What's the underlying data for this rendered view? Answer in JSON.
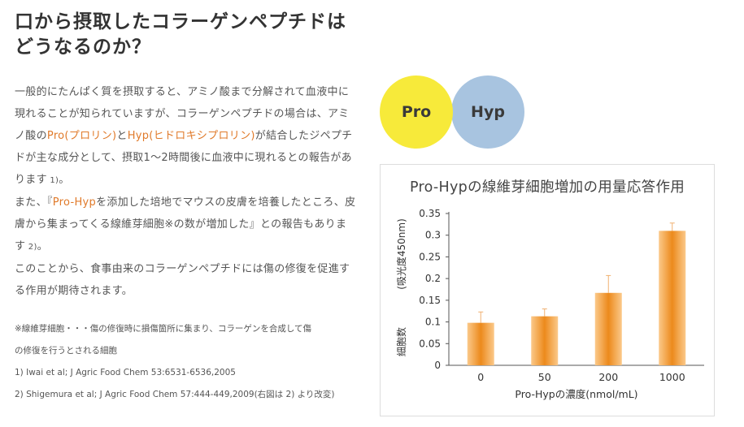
{
  "heading": "口から摂取したコラーゲンペプチドはどうなるのか？",
  "paragraph1": {
    "part1": "一般的にたんぱく質を摂取すると、アミノ酸まで分解されて血液中に現れることが知られていますが、コラーゲンペプチドの場合は、アミノ酸の",
    "pro": "Pro(プロリン)",
    "part2": "と",
    "hyp": "Hyp(ヒドロキシプロリン)",
    "part3": "が結合したジペプチドが主な成分として、摂取1～2時間後に血液中に現れるとの報告があります",
    "ref": " 1)",
    "part4": "。"
  },
  "paragraph2": {
    "part1": "また、『",
    "prohyp": "Pro-Hyp",
    "part2": "を添加した培地でマウスの皮膚を培養したところ、皮膚から集まってくる線維芽細胞※の数が増加した』との報告もあります",
    "ref": " 2)",
    "part3": "。"
  },
  "paragraph3": "このことから、食事由来のコラーゲンペプチドには傷の修復を促進する作用が期待されます。",
  "notes": [
    "※線維芽細胞・・・傷の修復時に損傷箇所に集まり、コラーゲンを合成して傷",
    "の修復を行うとされる細胞",
    "1) Iwai et al; J Agric Food Chem 53:6531-6536,2005",
    "2) Shigemura et al; J Agric Food Chem 57:444-449,2009(右図は 2) より改変)"
  ],
  "circles": {
    "left": "Pro",
    "right": "Hyp"
  },
  "colors": {
    "highlight": "#e07a2a",
    "pro_circle": "#f7ea3a",
    "hyp_circle": "#a8c4e0",
    "bar_light": "#fbc98a",
    "bar_dark": "#ec8a1c",
    "error_bar": "#f0b070"
  },
  "chart_data": {
    "type": "bar",
    "title": "Pro-Hypの線維芽細胞増加の用量応答作用",
    "xlabel": "Pro-Hypの濃度(nmol/mL)",
    "ylabel_top": "(吸光度450nm)",
    "ylabel_bottom": "細胞数",
    "categories": [
      "0",
      "50",
      "200",
      "1000"
    ],
    "values": [
      0.098,
      0.113,
      0.167,
      0.31
    ],
    "error": [
      0.025,
      0.017,
      0.04,
      0.018
    ],
    "ylim": [
      0,
      0.35
    ],
    "yticks": [
      "0",
      "0.05",
      "0.1",
      "0.15",
      "0.2",
      "0.25",
      "0.3",
      "0.35"
    ],
    "grid": false
  }
}
